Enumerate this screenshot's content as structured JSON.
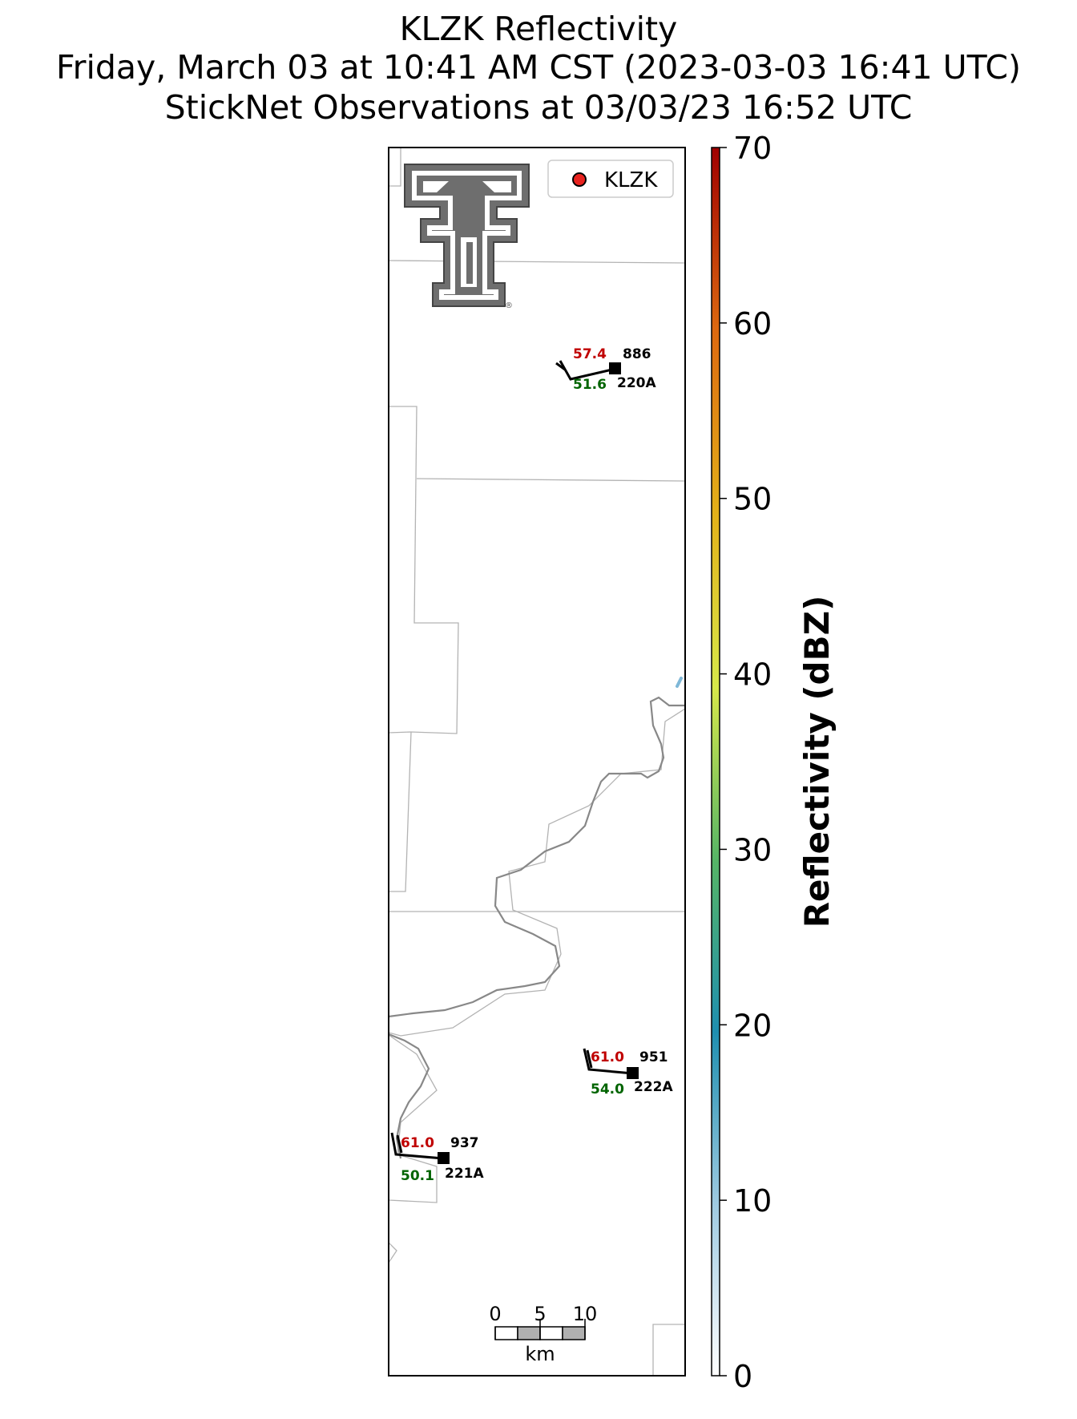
{
  "title": {
    "line1": "KLZK Reflectivity",
    "line2": "Friday, March 03 at 10:41 AM CST (2023-03-03 16:41 UTC)",
    "line3": "StickNet Observations at 03/03/23 16:52 UTC"
  },
  "legend": {
    "marker_color": "#e8231f",
    "label": "KLZK",
    "placement": "top-right"
  },
  "stations": [
    {
      "id": "220A",
      "temperature": "57.4",
      "dewpoint": "51.6",
      "pressure": "886"
    },
    {
      "id": "222A",
      "temperature": "61.0",
      "dewpoint": "54.0",
      "pressure": "951"
    },
    {
      "id": "221A",
      "temperature": "61.0",
      "dewpoint": "50.1",
      "pressure": "937"
    }
  ],
  "scale_bar": {
    "ticks": [
      "0",
      "5",
      "10"
    ],
    "unit": "km"
  },
  "colorbar": {
    "label": "Reflectivity (dBZ)",
    "ticks": [
      "0",
      "10",
      "20",
      "30",
      "40",
      "50",
      "60",
      "70"
    ],
    "range": [
      0,
      70
    ],
    "stops": [
      "#ffffff",
      "#9ecae1",
      "#1f8fb0",
      "#56b566",
      "#d7e84a",
      "#e3b21a",
      "#dd6a10",
      "#a00000"
    ]
  },
  "colors": {
    "temperature": "#c00000",
    "dewpoint": "#006400",
    "state_border": "#888888",
    "county_border": "#b3b3b3",
    "echo": "#7fb8d8",
    "logo_fill": "#6e6e6e"
  },
  "logo": {
    "name": "texas-tech-double-t-logo",
    "mark": "®"
  }
}
